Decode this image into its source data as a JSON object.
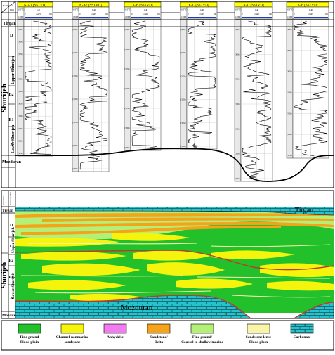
{
  "top_panel": {
    "header": {
      "formation_label": "Formation",
      "unit_label": "Unit"
    },
    "formations": {
      "top": "Tirgan",
      "main": "Shurijeh",
      "base": "Mozduran"
    },
    "members": {
      "upper": "Upper Shurijeh",
      "lower": "Lower Shurijeh"
    },
    "units": [
      "D",
      "C",
      "B2",
      "B1",
      "A"
    ],
    "wells": [
      {
        "name": "K-A1 [SSTVD]",
        "depth_label": "SSTVD",
        "scale": "1:3000",
        "gr_label": "GR",
        "unit": "gAPI",
        "gr_min": "0",
        "gr_max": "100",
        "depths": [
          "(3350)",
          "(3400)",
          "(3450)",
          "(3500)",
          "(3550)",
          "(3600)",
          "(3650)",
          "(3700)",
          "(3750)",
          "(3800)",
          "(3850)"
        ]
      },
      {
        "name": "K-A2 [SSTVD]",
        "depth_label": "SSTVD",
        "scale": "1:3000",
        "gr_label": "GR",
        "unit": "gAPI",
        "gr_min": "0",
        "gr_max": "100",
        "depths": [
          "(3050)",
          "(3100)",
          "(3150)",
          "(3200)",
          "(3250)",
          "(3300)",
          "(3350)"
        ]
      },
      {
        "name": "K-B [SSTVD]",
        "depth_label": "SSTVD",
        "scale": "1:3000",
        "gr_label": "GR",
        "unit": "gAPI",
        "gr_min": "0",
        "gr_max": "100",
        "depths": [
          "(3050)",
          "(3100)",
          "(3150)",
          "(3200)",
          "(3250)",
          "(3300)",
          "(3350)"
        ]
      },
      {
        "name": "K-C [SSTVD]",
        "depth_label": "SSTVD",
        "scale": "1:3000",
        "gr_label": "GR",
        "unit": "gAPI",
        "gr_min": "0",
        "gr_max": "100",
        "depths": [
          "(3050)",
          "(3100)",
          "(3150)",
          "(3200)",
          "(3250)",
          "(3300)"
        ]
      },
      {
        "name": "K-D [SSTVD]",
        "depth_label": "SSTVD",
        "scale": "1:3000",
        "gr_label": "GR",
        "unit": "gAPI",
        "gr_min": "0",
        "gr_max": "100",
        "depths": [
          "(2950)",
          "(3000)",
          "(3050)",
          "(3100)",
          "(3150)",
          "(3200)",
          "(3250)"
        ]
      },
      {
        "name": "K-E [SSTVD]",
        "depth_label": "SSTVD",
        "scale": "1:3000",
        "gr_label": "GR",
        "unit": "gAPI",
        "gr_min": "0",
        "gr_max": "100",
        "depths": [
          "(2950)",
          "(3000)",
          "(3050)",
          "(3100)",
          "(3150)",
          "(3200)",
          "(3250)"
        ]
      }
    ]
  },
  "bottom_panel": {
    "header": {
      "formation_label": "Formation",
      "reservoir_label": "Reservoir Unit"
    },
    "formations": {
      "top": "Tirgan",
      "main": "Shurijeh",
      "base": "Mozduran"
    },
    "members": {
      "upper": "Upper Shurijeh",
      "lower": "Lower Shurijeh"
    },
    "units": [
      "D",
      "C",
      "B2",
      "B1",
      "A"
    ],
    "in_section_labels": {
      "tirgan": "Tirgan",
      "mozduran": "Mozduran"
    }
  },
  "legend": [
    {
      "label": "Fine graind Flood plain",
      "line1": "Fine graind",
      "line2": "Flood plain",
      "color": "#22c02a"
    },
    {
      "label": "Channel-nonmarine sandstone",
      "line1": "Channel-nonmarine",
      "line2": "sandstone",
      "color": "#f4f40c"
    },
    {
      "label": "Anhydrite",
      "line1": "Anhydrite",
      "line2": "",
      "color": "#f07cf0"
    },
    {
      "label": "Sandstone/ Delta",
      "line1": "Sandstone/",
      "line2": "Delta",
      "color": "#f5a31a"
    },
    {
      "label": "Fine graind/ Coastal to shallow marine",
      "line1": "Fine graind/",
      "line2": "Coastal to shallow marine",
      "color": "#b4f078"
    },
    {
      "label": "Sandstone lense Flood plain",
      "line1": "Sandstone lense",
      "line2": "Flood plain",
      "color": "#f8f4a8"
    },
    {
      "label": "Carbonate",
      "line1": "Carbonate",
      "line2": "",
      "color": "#27c3cc"
    }
  ],
  "colors": {
    "flood_plain": "#22c02a",
    "channel_sand": "#f4f40c",
    "delta_sand": "#f5a31a",
    "coastal": "#b4f078",
    "lense": "#f8f4a8",
    "carbonate": "#27c3cc",
    "header_yellow": "#ffff00",
    "boundary_red": "#c0392b"
  }
}
